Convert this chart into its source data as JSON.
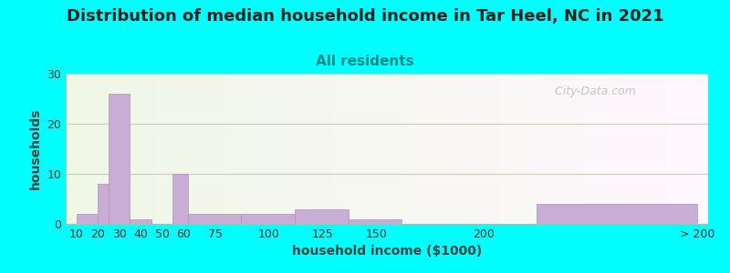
{
  "title": "Distribution of median household income in Tar Heel, NC in 2021",
  "subtitle": "All residents",
  "xlabel": "household income ($1000)",
  "ylabel": "households",
  "title_fontsize": 13,
  "subtitle_fontsize": 11,
  "label_fontsize": 10,
  "tick_fontsize": 9,
  "background_color": "#00FFFF",
  "bar_color": "#c8aed4",
  "bar_edge_color": "#b090c0",
  "watermark": "  City-Data.com",
  "ylim": [
    0,
    30
  ],
  "yticks": [
    0,
    10,
    20,
    30
  ],
  "bar_lefts": [
    10,
    20,
    25,
    35,
    45,
    55,
    62,
    87,
    112,
    137,
    162,
    225
  ],
  "bar_widths": [
    10,
    5,
    10,
    10,
    10,
    7,
    25,
    25,
    25,
    25,
    63,
    75
  ],
  "bar_heights": [
    2,
    8,
    26,
    1,
    0,
    10,
    2,
    2,
    3,
    1,
    0,
    4
  ],
  "xtick_positions": [
    10,
    20,
    30,
    40,
    50,
    60,
    75,
    100,
    125,
    150,
    200,
    300
  ],
  "xtick_labels": [
    "10",
    "20",
    "30",
    "40",
    "50",
    "60",
    "75",
    "100",
    "125",
    "150",
    "200",
    "> 200"
  ],
  "xlim": [
    5,
    305
  ]
}
